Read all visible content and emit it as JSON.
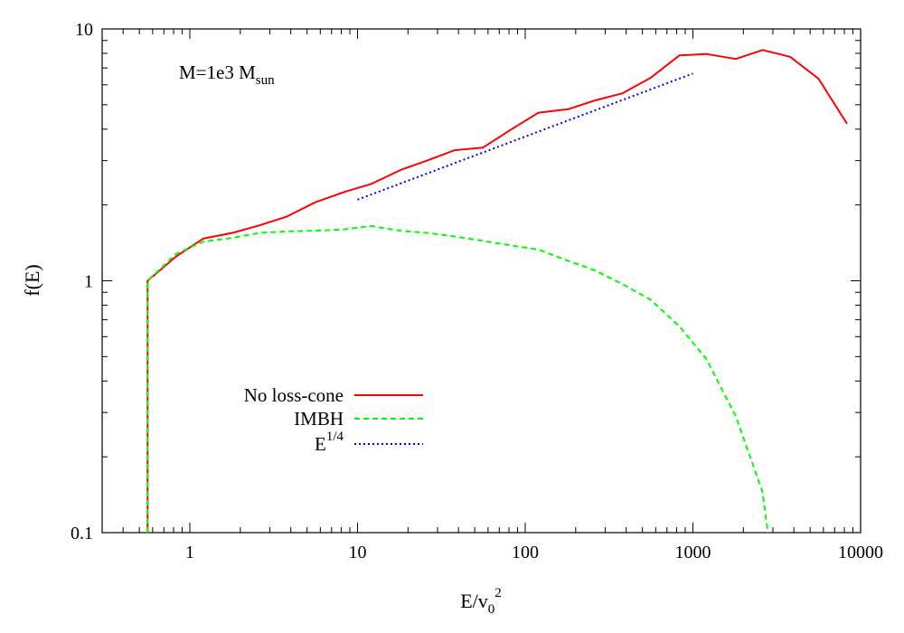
{
  "chart_data": {
    "type": "line",
    "title": "",
    "xlabel": {
      "base": "E/v",
      "sub": "0",
      "sup": "2"
    },
    "ylabel": "f(E)",
    "xscale": "log",
    "yscale": "log",
    "xlim": [
      0.3,
      10000
    ],
    "ylim": [
      0.1,
      10
    ],
    "x_ticks": [
      {
        "value": 1,
        "label": "1"
      },
      {
        "value": 10,
        "label": "10"
      },
      {
        "value": 100,
        "label": "100"
      },
      {
        "value": 1000,
        "label": "1000"
      },
      {
        "value": 10000,
        "label": "10000"
      }
    ],
    "y_ticks": [
      {
        "value": 0.1,
        "label": "0.1"
      },
      {
        "value": 1,
        "label": "1"
      },
      {
        "value": 10,
        "label": "10"
      }
    ],
    "grid": false,
    "legend_position": "middle-left",
    "annotation": {
      "base": "M=1e3 M",
      "sub": "sun",
      "position": "top-left"
    },
    "series": [
      {
        "name": "No loss-cone",
        "color": "#ff0000",
        "dash": "solid",
        "x": [
          0.56,
          0.56,
          0.83,
          1.2,
          1.8,
          2.6,
          3.8,
          5.6,
          8.3,
          12,
          18,
          26,
          38,
          56,
          83,
          120,
          180,
          260,
          380,
          560,
          830,
          1200,
          1800,
          2600,
          3800,
          5600,
          8300
        ],
        "y": [
          0.1,
          1.0,
          1.25,
          1.47,
          1.55,
          1.66,
          1.8,
          2.05,
          2.25,
          2.42,
          2.75,
          3.0,
          3.3,
          3.38,
          4.0,
          4.65,
          4.8,
          5.2,
          5.55,
          6.4,
          7.85,
          7.95,
          7.6,
          8.25,
          7.75,
          6.35,
          4.2
        ]
      },
      {
        "name": "IMBH",
        "color": "#00ff00",
        "dash": "dashed",
        "x": [
          0.56,
          0.56,
          0.83,
          1.2,
          1.8,
          2.6,
          3.8,
          5.6,
          8.3,
          12,
          18,
          26,
          38,
          56,
          83,
          120,
          180,
          260,
          380,
          560,
          830,
          1200,
          1800,
          2600,
          2800
        ],
        "y": [
          0.1,
          1.0,
          1.28,
          1.43,
          1.48,
          1.55,
          1.57,
          1.58,
          1.6,
          1.65,
          1.58,
          1.55,
          1.5,
          1.44,
          1.38,
          1.33,
          1.2,
          1.1,
          0.97,
          0.84,
          0.66,
          0.49,
          0.29,
          0.145,
          0.1
        ]
      },
      {
        "name": "E",
        "name_sup": "1/4",
        "color": "#0000ff",
        "dash": "dotted",
        "x": [
          10,
          1000
        ],
        "y": [
          2.1,
          6.65
        ]
      }
    ]
  }
}
